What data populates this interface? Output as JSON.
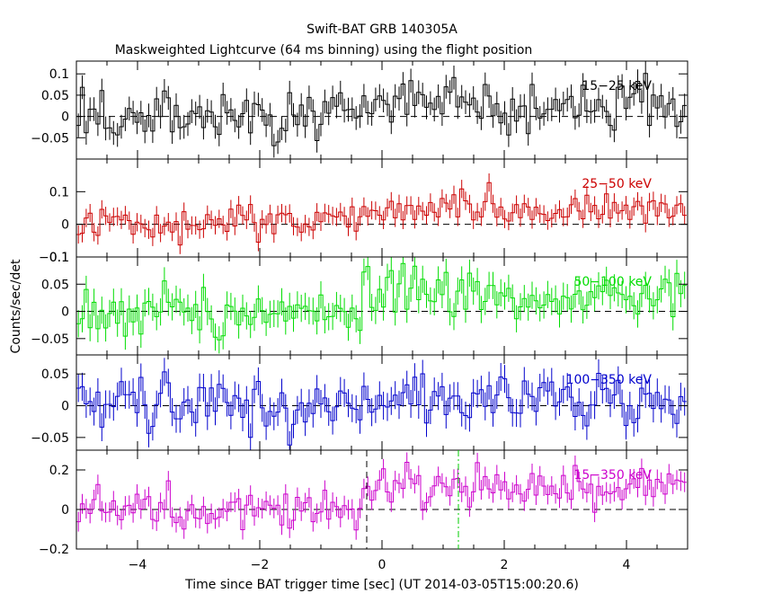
{
  "chart_data": {
    "type": "line",
    "title": "Swift-BAT GRB 140305A",
    "subtitle": "Maskweighted Lightcurve (64 ms binning) using the flight position",
    "xlabel": "Time since BAT trigger time [sec] (UT 2014-03-05T15:00:20.6)",
    "ylabel": "Counts/sec/det",
    "xlim": [
      -5,
      5
    ],
    "x_ticks": [
      -4,
      -2,
      0,
      2,
      4
    ],
    "x_tick_labels": [
      "−4",
      "−2",
      "0",
      "2",
      "4"
    ],
    "bin_width_s": 0.064,
    "vertical_markers": [
      {
        "x": -0.25,
        "style": "dashed",
        "color": "#000000",
        "panel": "bottom"
      },
      {
        "x": 1.25,
        "style": "dash-dot",
        "color": "#00cc00",
        "panel": "bottom"
      }
    ],
    "panels": [
      {
        "band": "15−25 keV",
        "color": "#000000",
        "ylim": [
          -0.1,
          0.13
        ],
        "y_ticks": [
          -0.05,
          0,
          0.05,
          0.1
        ],
        "y_tick_labels": [
          "−0.05",
          "0",
          "0.05",
          "0.1"
        ],
        "pre_level": 0.0,
        "post_level": 0.03,
        "noise": 0.03,
        "err": 0.028
      },
      {
        "band": "25−50 keV",
        "color": "#cc0000",
        "ylim": [
          -0.1,
          0.2
        ],
        "y_ticks": [
          -0.1,
          0,
          0.1
        ],
        "y_tick_labels": [
          "−0.1",
          "0",
          "0.1"
        ],
        "pre_level": 0.0,
        "post_level": 0.05,
        "noise": 0.025,
        "err": 0.028
      },
      {
        "band": "50−100 keV",
        "color": "#00dd00",
        "ylim": [
          -0.08,
          0.1
        ],
        "y_ticks": [
          -0.05,
          0,
          0.05,
          0.1
        ],
        "y_tick_labels": [
          "−0.05",
          "0",
          "0.05",
          "0.1"
        ],
        "pre_level": 0.0,
        "post_level": 0.03,
        "noise": 0.025,
        "err": 0.025
      },
      {
        "band": "100−350 keV",
        "color": "#0000cc",
        "ylim": [
          -0.07,
          0.08
        ],
        "y_ticks": [
          -0.05,
          0,
          0.05
        ],
        "y_tick_labels": [
          "−0.05",
          "0",
          "0.05"
        ],
        "pre_level": 0.0,
        "post_level": 0.005,
        "noise": 0.022,
        "err": 0.022
      },
      {
        "band": "15−350 keV",
        "color": "#cc00cc",
        "ylim": [
          -0.2,
          0.3
        ],
        "y_ticks": [
          -0.2,
          0,
          0.2
        ],
        "y_tick_labels": [
          "−0.2",
          "0",
          "0.2"
        ],
        "pre_level": 0.0,
        "post_level": 0.12,
        "noise": 0.05,
        "err": 0.05
      }
    ]
  }
}
